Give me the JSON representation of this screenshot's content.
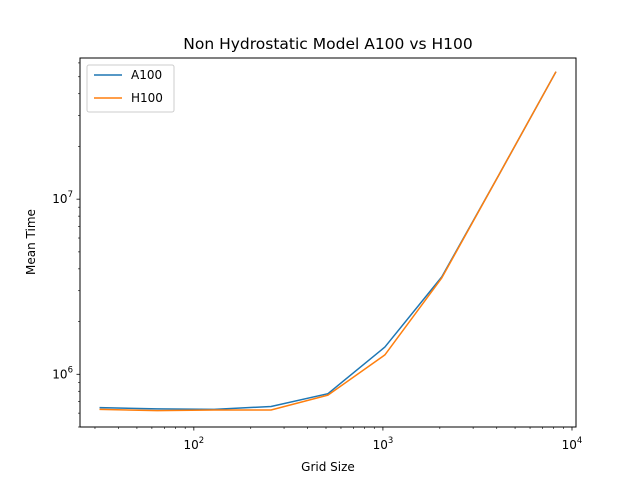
{
  "chart_data": {
    "type": "line",
    "title": "Non Hydrostatic Model A100 vs H100",
    "xlabel": "Grid Size",
    "ylabel": "Mean Time",
    "xscale": "log",
    "yscale": "log",
    "xlim": [
      25,
      10500
    ],
    "ylim": [
      500000,
      64000000
    ],
    "xticks": [
      {
        "value": 100,
        "base": "10",
        "exp": "2"
      },
      {
        "value": 1000,
        "base": "10",
        "exp": "3"
      },
      {
        "value": 10000,
        "base": "10",
        "exp": "4"
      }
    ],
    "yticks": [
      {
        "value": 1000000,
        "base": "10",
        "exp": "6"
      },
      {
        "value": 10000000,
        "base": "10",
        "exp": "7"
      }
    ],
    "grid": false,
    "legend": "upper-left",
    "series": [
      {
        "name": "A100",
        "color": "#1f77b4",
        "x": [
          32,
          64,
          128,
          256,
          512,
          1024,
          2048,
          4096,
          8192
        ],
        "y": [
          645000,
          635000,
          630000,
          655000,
          775000,
          1430000,
          3600000,
          13700000,
          53000000
        ]
      },
      {
        "name": "H100",
        "color": "#ff7f0e",
        "x": [
          32,
          64,
          128,
          256,
          512,
          1024,
          2048,
          4096,
          8192
        ],
        "y": [
          630000,
          620000,
          625000,
          625000,
          760000,
          1290000,
          3550000,
          13700000,
          53000000
        ]
      }
    ]
  }
}
